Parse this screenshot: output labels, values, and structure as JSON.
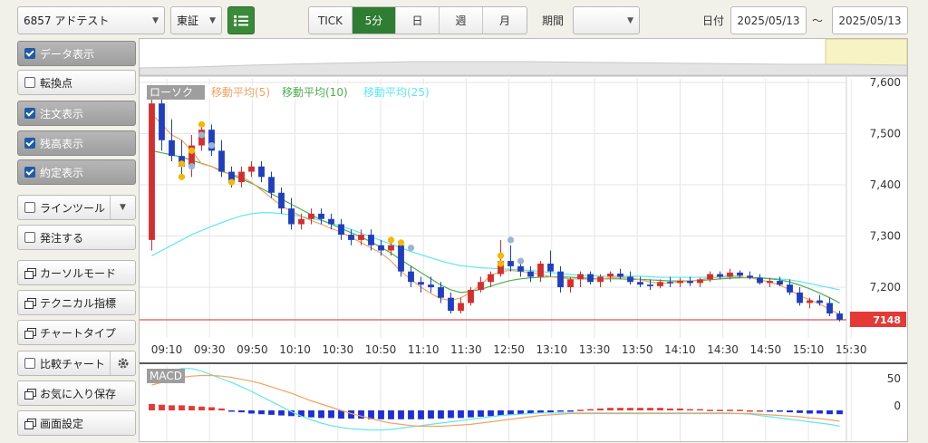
{
  "toolbar": {
    "symbol": "6857 アドテスト",
    "market": "東証",
    "list_icon": "list-icon",
    "intervals": [
      "TICK",
      "5分",
      "日",
      "週",
      "月"
    ],
    "active_interval": "5分",
    "period_label": "期間",
    "period_value": "",
    "date_label": "日付",
    "date_from": "2025/05/13",
    "date_sep": "〜",
    "date_to": "2025/05/13"
  },
  "sidebar": {
    "data_display": "データ表示",
    "inflection": "転換点",
    "order_display": "注文表示",
    "position_display": "残高表示",
    "execution_display": "約定表示",
    "line_tool": "ラインツール",
    "place_order": "発注する",
    "cursor_mode": "カーソルモード",
    "technical": "テクニカル指標",
    "chart_type": "チャートタイプ",
    "compare": "比較チャート",
    "save_favorite": "お気に入り保存",
    "screen_settings": "画面設定"
  },
  "chart_data": {
    "type": "candlestick",
    "legend": [
      {
        "name": "ローソク",
        "color": "#9e9e9e"
      },
      {
        "name": "移動平均(5)",
        "color": "#f4a261"
      },
      {
        "name": "移動平均(10)",
        "color": "#4caf50"
      },
      {
        "name": "移動平均(25)",
        "color": "#5ee7f0"
      }
    ],
    "x_ticks": [
      "09:10",
      "09:30",
      "09:50",
      "10:10",
      "10:30",
      "10:50",
      "11:10",
      "11:30",
      "12:50",
      "13:10",
      "13:30",
      "13:50",
      "14:10",
      "14:30",
      "14:50",
      "15:10",
      "15:30"
    ],
    "y_ticks": [
      "7,600",
      "7,500",
      "7,400",
      "7,300",
      "7,200"
    ],
    "ylim": [
      7148,
      7600
    ],
    "last_price": "7148",
    "up_color": "#d32f2f",
    "down_color": "#1f3fbf",
    "candles": [
      [
        7300,
        7580,
        7280,
        7560
      ],
      [
        7560,
        7590,
        7470,
        7490
      ],
      [
        7490,
        7530,
        7450,
        7460
      ],
      [
        7460,
        7490,
        7420,
        7440
      ],
      [
        7440,
        7500,
        7420,
        7480
      ],
      [
        7480,
        7520,
        7470,
        7510
      ],
      [
        7510,
        7520,
        7460,
        7470
      ],
      [
        7470,
        7490,
        7420,
        7430
      ],
      [
        7430,
        7440,
        7400,
        7410
      ],
      [
        7410,
        7440,
        7400,
        7430
      ],
      [
        7430,
        7450,
        7420,
        7440
      ],
      [
        7440,
        7450,
        7410,
        7420
      ],
      [
        7420,
        7430,
        7380,
        7390
      ],
      [
        7390,
        7400,
        7350,
        7360
      ],
      [
        7360,
        7380,
        7320,
        7330
      ],
      [
        7330,
        7350,
        7320,
        7340
      ],
      [
        7340,
        7360,
        7330,
        7350
      ],
      [
        7350,
        7360,
        7330,
        7340
      ],
      [
        7340,
        7350,
        7320,
        7330
      ],
      [
        7330,
        7340,
        7300,
        7310
      ],
      [
        7310,
        7320,
        7290,
        7300
      ],
      [
        7300,
        7320,
        7290,
        7310
      ],
      [
        7310,
        7320,
        7280,
        7290
      ],
      [
        7290,
        7300,
        7270,
        7280
      ],
      [
        7280,
        7300,
        7270,
        7290
      ],
      [
        7290,
        7300,
        7230,
        7240
      ],
      [
        7240,
        7250,
        7210,
        7220
      ],
      [
        7220,
        7230,
        7200,
        7215
      ],
      [
        7215,
        7230,
        7200,
        7210
      ],
      [
        7210,
        7220,
        7180,
        7190
      ],
      [
        7190,
        7200,
        7160,
        7165
      ],
      [
        7165,
        7190,
        7160,
        7180
      ],
      [
        7180,
        7210,
        7175,
        7205
      ],
      [
        7205,
        7230,
        7200,
        7220
      ],
      [
        7220,
        7240,
        7210,
        7235
      ],
      [
        7235,
        7300,
        7230,
        7260
      ],
      [
        7260,
        7290,
        7240,
        7250
      ],
      [
        7250,
        7260,
        7230,
        7240
      ],
      [
        7240,
        7250,
        7220,
        7230
      ],
      [
        7230,
        7260,
        7220,
        7255
      ],
      [
        7255,
        7280,
        7230,
        7240
      ],
      [
        7240,
        7250,
        7200,
        7210
      ],
      [
        7210,
        7230,
        7200,
        7225
      ],
      [
        7225,
        7240,
        7210,
        7235
      ],
      [
        7235,
        7240,
        7215,
        7220
      ],
      [
        7220,
        7235,
        7210,
        7230
      ],
      [
        7230,
        7240,
        7220,
        7236
      ],
      [
        7236,
        7245,
        7225,
        7230
      ],
      [
        7230,
        7240,
        7215,
        7220
      ],
      [
        7220,
        7230,
        7210,
        7215
      ],
      [
        7215,
        7225,
        7205,
        7212
      ],
      [
        7212,
        7225,
        7208,
        7220
      ],
      [
        7220,
        7230,
        7210,
        7218
      ],
      [
        7218,
        7228,
        7210,
        7222
      ],
      [
        7222,
        7230,
        7212,
        7218
      ],
      [
        7218,
        7228,
        7210,
        7225
      ],
      [
        7225,
        7240,
        7220,
        7235
      ],
      [
        7235,
        7240,
        7225,
        7230
      ],
      [
        7230,
        7245,
        7225,
        7238
      ],
      [
        7238,
        7242,
        7228,
        7232
      ],
      [
        7232,
        7240,
        7225,
        7228
      ],
      [
        7228,
        7235,
        7215,
        7218
      ],
      [
        7218,
        7228,
        7210,
        7222
      ],
      [
        7222,
        7230,
        7212,
        7215
      ],
      [
        7215,
        7225,
        7195,
        7200
      ],
      [
        7200,
        7210,
        7175,
        7180
      ],
      [
        7180,
        7190,
        7170,
        7185
      ],
      [
        7185,
        7195,
        7175,
        7180
      ],
      [
        7180,
        7190,
        7155,
        7160
      ],
      [
        7160,
        7165,
        7145,
        7148
      ]
    ],
    "ma5": [
      7540,
      7520,
      7500,
      7490,
      7470,
      7445,
      7440,
      7430,
      7425,
      7420,
      7410,
      7395,
      7380,
      7365,
      7355,
      7345,
      7337,
      7330,
      7322,
      7315,
      7305,
      7295,
      7285,
      7275,
      7260,
      7240,
      7225,
      7210,
      7198,
      7188,
      7185,
      7190,
      7200,
      7215,
      7232,
      7240,
      7242,
      7240,
      7238,
      7235,
      7230,
      7228,
      7226,
      7226,
      7225,
      7226,
      7228,
      7229,
      7228,
      7224,
      7220,
      7218,
      7218,
      7220,
      7222,
      7224,
      7228,
      7230,
      7232,
      7230,
      7228,
      7224,
      7220,
      7214,
      7205,
      7194,
      7186,
      7178,
      7168,
      7158
    ],
    "ma10": [
      7470,
      7466,
      7462,
      7458,
      7452,
      7446,
      7440,
      7432,
      7424,
      7416,
      7408,
      7398,
      7388,
      7378,
      7368,
      7358,
      7348,
      7338,
      7330,
      7322,
      7314,
      7306,
      7296,
      7286,
      7275,
      7262,
      7250,
      7238,
      7226,
      7214,
      7205,
      7200,
      7202,
      7206,
      7212,
      7218,
      7223,
      7226,
      7228,
      7229,
      7230,
      7230,
      7229,
      7228,
      7227,
      7226,
      7226,
      7226,
      7225,
      7225,
      7224,
      7223,
      7222,
      7222,
      7222,
      7223,
      7224,
      7226,
      7227,
      7228,
      7228,
      7228,
      7226,
      7224,
      7220,
      7214,
      7207,
      7199,
      7190,
      7180
    ],
    "ma25": [
      7270,
      7280,
      7290,
      7300,
      7310,
      7318,
      7326,
      7333,
      7340,
      7346,
      7350,
      7352,
      7352,
      7350,
      7348,
      7345,
      7341,
      7337,
      7332,
      7326,
      7320,
      7313,
      7306,
      7299,
      7292,
      7285,
      7278,
      7272,
      7266,
      7260,
      7255,
      7251,
      7249,
      7247,
      7246,
      7245,
      7244,
      7243,
      7242,
      7240,
      7238,
      7236,
      7234,
      7233,
      7232,
      7231,
      7231,
      7231,
      7231,
      7231,
      7230,
      7229,
      7229,
      7229,
      7229,
      7229,
      7229,
      7229,
      7229,
      7229,
      7229,
      7228,
      7227,
      7226,
      7224,
      7221,
      7217,
      7213,
      7209,
      7205
    ],
    "execution_markers": [
      {
        "index": 3,
        "price": 7445,
        "color": "#f5b800"
      },
      {
        "index": 3,
        "price": 7420,
        "color": "#f5b800"
      },
      {
        "index": 4,
        "price": 7470,
        "color": "#f5b800"
      },
      {
        "index": 4,
        "price": 7440,
        "color": "#9ab5d6"
      },
      {
        "index": 5,
        "price": 7500,
        "color": "#9ab5d6"
      },
      {
        "index": 5,
        "price": 7520,
        "color": "#f5b800"
      },
      {
        "index": 6,
        "price": 7480,
        "color": "#9ab5d6"
      },
      {
        "index": 8,
        "price": 7410,
        "color": "#f5b800"
      },
      {
        "index": 24,
        "price": 7300,
        "color": "#f5b800"
      },
      {
        "index": 25,
        "price": 7295,
        "color": "#f5b800"
      },
      {
        "index": 26,
        "price": 7285,
        "color": "#9ab5d6"
      },
      {
        "index": 35,
        "price": 7270,
        "color": "#f5b800"
      },
      {
        "index": 35,
        "price": 7255,
        "color": "#f5b800"
      },
      {
        "index": 36,
        "price": 7300,
        "color": "#9ab5d6"
      },
      {
        "index": 37,
        "price": 7260,
        "color": "#9ab5d6"
      }
    ],
    "macd": {
      "label": "MACD",
      "y_ticks": [
        "50",
        "0"
      ],
      "hist": [
        10,
        9,
        8,
        8,
        7,
        6,
        5,
        3,
        -1,
        -3,
        -5,
        -6,
        -7,
        -8,
        -9,
        -10,
        -11,
        -12,
        -12,
        -13,
        -13,
        -13,
        -14,
        -14,
        -14,
        -14,
        -14,
        -14,
        -13,
        -13,
        -12,
        -12,
        -11,
        -10,
        -9,
        -8,
        -7,
        -6,
        -5,
        -4,
        -3,
        -2,
        -1,
        1,
        2,
        3,
        4,
        4,
        4,
        4,
        4,
        4,
        3,
        3,
        2,
        2,
        1,
        1,
        1,
        1,
        0,
        0,
        -1,
        -2,
        -3,
        -4,
        -5,
        -5,
        -6,
        -6
      ],
      "macd_line": [
        45,
        55,
        62,
        66,
        66,
        62,
        56,
        50,
        44,
        37,
        30,
        22,
        14,
        6,
        -2,
        -9,
        -15,
        -20,
        -24,
        -27,
        -29,
        -30,
        -31,
        -31,
        -30,
        -28,
        -26,
        -24,
        -22,
        -20,
        -18,
        -16,
        -14,
        -12,
        -10,
        -8,
        -7,
        -6,
        -5,
        -4,
        -4,
        -4,
        -4,
        -4,
        -4,
        -4,
        -4,
        -4,
        -4,
        -4,
        -4,
        -4,
        -4,
        -4,
        -4,
        -4,
        -4,
        -4,
        -4,
        -5,
        -6,
        -8,
        -10,
        -12,
        -14,
        -16,
        -18,
        -20,
        -22,
        -25
      ],
      "signal_line": [
        40,
        44,
        48,
        52,
        54,
        55,
        55,
        54,
        52,
        49,
        46,
        42,
        37,
        32,
        27,
        21,
        15,
        10,
        5,
        0,
        -5,
        -9,
        -13,
        -17,
        -20,
        -22,
        -24,
        -25,
        -25,
        -25,
        -24,
        -23,
        -22,
        -20,
        -18,
        -16,
        -14,
        -12,
        -10,
        -8,
        -7,
        -6,
        -5,
        -5,
        -5,
        -5,
        -5,
        -5,
        -5,
        -5,
        -5,
        -5,
        -5,
        -5,
        -5,
        -5,
        -5,
        -5,
        -5,
        -5,
        -5,
        -6,
        -7,
        -8,
        -9,
        -10,
        -12,
        -13,
        -15,
        -17
      ]
    }
  }
}
